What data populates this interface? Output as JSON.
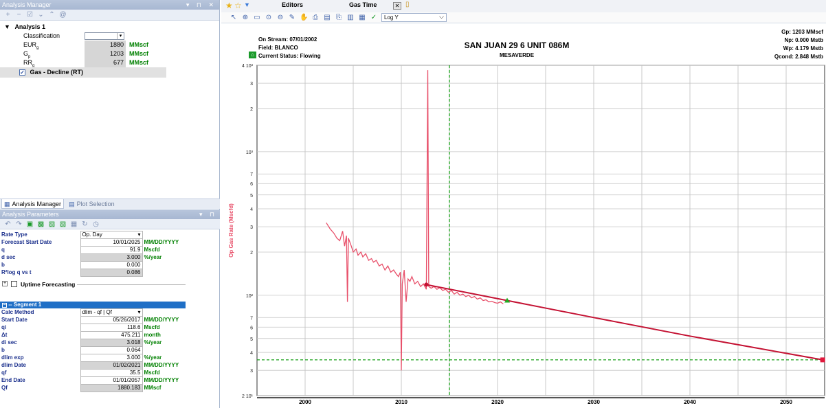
{
  "left": {
    "analysis_manager_title": "Analysis Manager",
    "tree": {
      "analysis": "Analysis 1",
      "classification_label": "Classification",
      "eur_label": "EUR",
      "eur_sub": "g",
      "eur_value": "1880",
      "eur_unit": "MMscf",
      "gp_label": "G",
      "gp_sub": "p",
      "gp_value": "1203",
      "gp_unit": "MMscf",
      "rr_label": "RR",
      "rr_sub": "g",
      "rr_value": "677",
      "rr_unit": "MMscf",
      "forecast_item": "Gas - Decline (RT)"
    },
    "tabs": {
      "analysis_manager": "Analysis Manager",
      "plot_selection": "Plot Selection"
    },
    "analysis_params_title": "Analysis Parameters",
    "params": [
      {
        "label": "Rate Type",
        "value": "Op. Day",
        "unit": "",
        "type": "select"
      },
      {
        "label": "Forecast Start Date",
        "value": "10/01/2025",
        "unit": "MM/DD/YYYY",
        "type": "input"
      },
      {
        "label": "q",
        "value": "91.9",
        "unit": "Mscfd",
        "type": "input"
      },
      {
        "label": "d sec",
        "value": "3.000",
        "unit": "%/year",
        "type": "gray"
      },
      {
        "label": "b",
        "value": "0.000",
        "unit": "",
        "type": "input"
      },
      {
        "label": "R²log q vs t",
        "value": "0.086",
        "unit": "",
        "type": "gray"
      }
    ],
    "uptime_label": "Uptime Forecasting",
    "segment_title": "Segment 1",
    "segment": [
      {
        "label": "Calc Method",
        "value": "dlim - qf | Qf",
        "unit": "",
        "type": "select"
      },
      {
        "label": "Start Date",
        "value": "05/26/2017",
        "unit": "MM/DD/YYYY",
        "type": "input"
      },
      {
        "label": "qi",
        "value": "118.6",
        "unit": "Mscfd",
        "type": "input"
      },
      {
        "label": "Δt",
        "value": "475.211",
        "unit": "month",
        "type": "input"
      },
      {
        "label": "di sec",
        "value": "3.018",
        "unit": "%/year",
        "type": "gray"
      },
      {
        "label": "b",
        "value": "0.064",
        "unit": "",
        "type": "input"
      },
      {
        "label": "dlim exp",
        "value": "3.000",
        "unit": "%/year",
        "type": "input"
      },
      {
        "label": "dlim Date",
        "value": "01/02/2021",
        "unit": "MM/DD/YYYY",
        "type": "gray"
      },
      {
        "label": "qf",
        "value": "35.5",
        "unit": "Mscfd",
        "type": "input"
      },
      {
        "label": "End Date",
        "value": "01/01/2057",
        "unit": "MM/DD/YYYY",
        "type": "input"
      },
      {
        "label": "Qf",
        "value": "1880.183",
        "unit": "MMscf",
        "type": "gray"
      }
    ]
  },
  "right": {
    "tab_editors": "Editors",
    "tab_gas_time": "Gas Time",
    "log_select": "Log Y",
    "header": {
      "on_stream": "On Stream: 07/01/2002",
      "field": "Field: BLANCO",
      "status": "Current Status: Flowing",
      "title": "SAN JUAN 29 6 UNIT 086M",
      "subtitle": "MESAVERDE",
      "gp": "Gp: 1203 MMscf",
      "np": "Np: 0.000 Mstb",
      "wp": "Wp: 4.179 Mstb",
      "qcond": "Qcond: 2.848 Mstb"
    }
  },
  "chart_data": {
    "type": "line",
    "ylabel": "Op Gas Rate (Mscfd)",
    "yscale": "log",
    "ylim": [
      20,
      4000
    ],
    "xlim": [
      1995,
      2054
    ],
    "xticks": [
      2000,
      2010,
      2020,
      2030,
      2040,
      2050
    ],
    "ytick_labels": [
      {
        "v": 4000,
        "t": "4 10³"
      },
      {
        "v": 3000,
        "t": "3"
      },
      {
        "v": 2000,
        "t": "2"
      },
      {
        "v": 1000,
        "t": "10³"
      },
      {
        "v": 700,
        "t": "7"
      },
      {
        "v": 600,
        "t": "6"
      },
      {
        "v": 500,
        "t": "5"
      },
      {
        "v": 400,
        "t": "4"
      },
      {
        "v": 300,
        "t": "3"
      },
      {
        "v": 200,
        "t": "2"
      },
      {
        "v": 100,
        "t": "10²"
      },
      {
        "v": 70,
        "t": "7"
      },
      {
        "v": 60,
        "t": "6"
      },
      {
        "v": 50,
        "t": "5"
      },
      {
        "v": 40,
        "t": "4"
      },
      {
        "v": 30,
        "t": "3"
      },
      {
        "v": 20,
        "t": "2 10¹"
      }
    ],
    "history": {
      "name": "",
      "color": "#e8506a",
      "points": [
        [
          2002.2,
          320
        ],
        [
          2002.6,
          290
        ],
        [
          2003.0,
          270
        ],
        [
          2003.3,
          250
        ],
        [
          2003.6,
          240
        ],
        [
          2003.9,
          280
        ],
        [
          2004.1,
          220
        ],
        [
          2004.3,
          260
        ],
        [
          2004.4,
          90
        ],
        [
          2004.5,
          250
        ],
        [
          2004.8,
          220
        ],
        [
          2005.0,
          200
        ],
        [
          2005.3,
          210
        ],
        [
          2005.5,
          190
        ],
        [
          2005.8,
          200
        ],
        [
          2006.0,
          185
        ],
        [
          2006.3,
          195
        ],
        [
          2006.6,
          175
        ],
        [
          2006.9,
          180
        ],
        [
          2007.1,
          170
        ],
        [
          2007.4,
          175
        ],
        [
          2007.7,
          160
        ],
        [
          2008.0,
          165
        ],
        [
          2008.3,
          150
        ],
        [
          2008.6,
          160
        ],
        [
          2008.9,
          145
        ],
        [
          2009.2,
          150
        ],
        [
          2009.5,
          140
        ],
        [
          2009.7,
          135
        ],
        [
          2009.9,
          145
        ],
        [
          2010.0,
          30
        ],
        [
          2010.1,
          120
        ],
        [
          2010.3,
          150
        ],
        [
          2010.5,
          90
        ],
        [
          2010.7,
          130
        ],
        [
          2010.9,
          125
        ],
        [
          2011.1,
          135
        ],
        [
          2011.4,
          120
        ],
        [
          2011.7,
          125
        ],
        [
          2012.0,
          115
        ],
        [
          2012.3,
          120
        ],
        [
          2012.6,
          110
        ],
        [
          2012.75,
          3700
        ],
        [
          2012.85,
          115
        ],
        [
          2013.1,
          112
        ],
        [
          2013.4,
          115
        ],
        [
          2013.7,
          110
        ],
        [
          2014.0,
          113
        ],
        [
          2014.3,
          108
        ],
        [
          2014.6,
          110
        ],
        [
          2014.9,
          105
        ],
        [
          2015.2,
          108
        ],
        [
          2015.5,
          102
        ],
        [
          2015.8,
          105
        ],
        [
          2016.1,
          100
        ],
        [
          2016.4,
          102
        ],
        [
          2016.7,
          98
        ],
        [
          2017.0,
          100
        ],
        [
          2017.3,
          96
        ],
        [
          2017.6,
          98
        ],
        [
          2017.9,
          94
        ],
        [
          2018.2,
          96
        ],
        [
          2018.5,
          92
        ],
        [
          2018.8,
          93
        ],
        [
          2019.1,
          90
        ],
        [
          2019.4,
          91
        ],
        [
          2019.7,
          89
        ],
        [
          2020.0,
          88
        ],
        [
          2020.3,
          90
        ],
        [
          2020.6,
          87
        ]
      ]
    },
    "forecast": {
      "name": "",
      "color": "#c41233",
      "points": [
        [
          2012.6,
          118.6
        ],
        [
          2021.0,
          92
        ],
        [
          2030.0,
          70
        ],
        [
          2040.0,
          52
        ],
        [
          2053.8,
          35.5
        ]
      ]
    },
    "markers": [
      {
        "x": 2012.6,
        "y": 118.6,
        "shape": "circle",
        "color": "#c41233"
      },
      {
        "x": 2021.0,
        "y": 92,
        "shape": "triangle",
        "color": "#22aa22"
      },
      {
        "x": 2053.8,
        "y": 35.5,
        "shape": "square",
        "color": "#e0183c"
      }
    ],
    "vline_x": 2015.0,
    "hline_y": 35.5,
    "guide_color": "#18a018"
  }
}
